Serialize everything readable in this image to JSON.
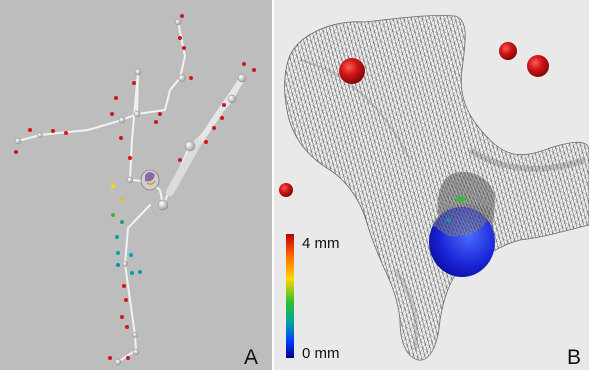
{
  "panels": [
    {
      "label": "A"
    },
    {
      "label": "B"
    }
  ],
  "color_scale": {
    "max_label": "4 mm",
    "min_label": "0 mm",
    "colors": [
      "#c00000",
      "#ff6a00",
      "#ffd800",
      "#30c030",
      "#00a0a0",
      "#0040ff",
      "#00008a"
    ]
  },
  "colors": {
    "panel_a_background": "#bdbdbd",
    "panel_b_background": "#e9e9e9",
    "marker_red": "#d21818",
    "bone_mesh": "#5a5a5a",
    "cup_blue": "#1a2cd8"
  }
}
